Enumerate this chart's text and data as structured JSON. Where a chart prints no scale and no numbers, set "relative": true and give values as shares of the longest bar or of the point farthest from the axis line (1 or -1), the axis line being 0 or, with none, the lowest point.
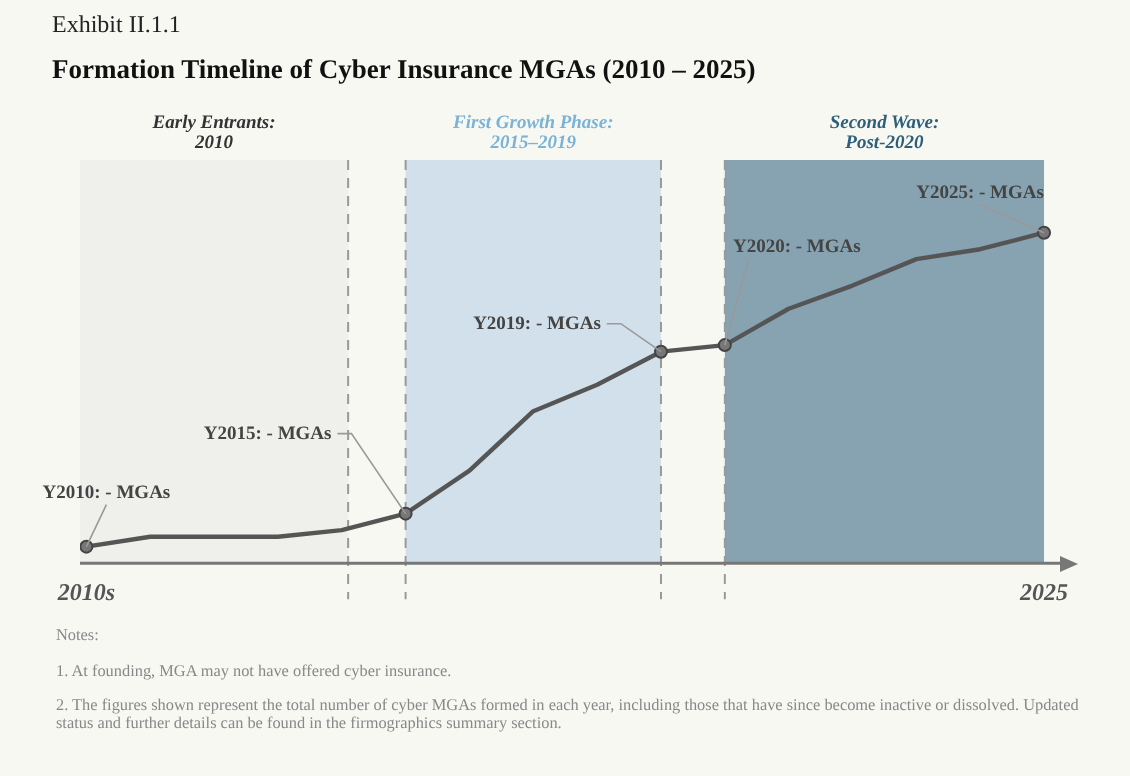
{
  "chart_data": {
    "type": "line",
    "subtitle": "Exhibit II.1.1",
    "title": "Formation Timeline of Cyber Insurance MGAs (2010 – 2025)",
    "x": [
      2010,
      2011,
      2012,
      2013,
      2014,
      2015,
      2016,
      2017,
      2018,
      2019,
      2020,
      2021,
      2022,
      2023,
      2024,
      2025
    ],
    "relative": true,
    "series": [
      {
        "color": "#555555",
        "values": [
          0.05,
          0.08,
          0.08,
          0.08,
          0.1,
          0.15,
          0.28,
          0.46,
          0.54,
          0.64,
          0.66,
          0.77,
          0.84,
          0.92,
          0.95,
          1
        ]
      }
    ],
    "xlim": [
      2009.9,
      2025.25
    ],
    "xticks": [
      {
        "value": 2010,
        "label": "2010s"
      },
      2025
    ],
    "grid": false,
    "legend": false,
    "line_style": "solid",
    "bands": [
      {
        "axis": "x",
        "from": 2009.9,
        "to": 2014.1,
        "label": "Early Entrants:\n2010",
        "color": "#efefeb"
      },
      {
        "axis": "x",
        "from": 2015,
        "to": 2019,
        "label": "First Growth Phase:\n2015–2019",
        "color": "#d1e0ea"
      },
      {
        "axis": "x",
        "from": 2020,
        "to": 2025,
        "label": "Second Wave:\nPost-2020",
        "color": "#87a3b2"
      }
    ],
    "ref_lines": [
      {
        "axis": "x",
        "value": 2014.1,
        "line_style": "dashed",
        "color": "#999999"
      },
      {
        "axis": "x",
        "value": 2015,
        "line_style": "dashed",
        "color": "#999999"
      },
      {
        "axis": "x",
        "value": 2019,
        "line_style": "dashed",
        "color": "#999999"
      },
      {
        "axis": "x",
        "value": 2020,
        "line_style": "dashed",
        "color": "#999999"
      }
    ],
    "annotations": [
      {
        "text": "Y2010: - MGAs",
        "x": 2010,
        "y": 0.05
      },
      {
        "text": "Y2015: - MGAs",
        "x": 2015,
        "y": 0.15
      },
      {
        "text": "Y2019: - MGAs",
        "x": 2019,
        "y": 0.64
      },
      {
        "text": "Y2020: - MGAs",
        "x": 2020,
        "y": 0.66
      },
      {
        "text": "Y2025: - MGAs",
        "x": 2025,
        "y": 1
      },
      "Notes:",
      "1. At founding, MGA may not have offered cyber insurance.",
      "2. The figures shown represent the total number of cyber MGAs formed in each year, including those that have since become inactive or dissolved. Updated status and further details can be found in the firmographics summary section."
    ]
  }
}
